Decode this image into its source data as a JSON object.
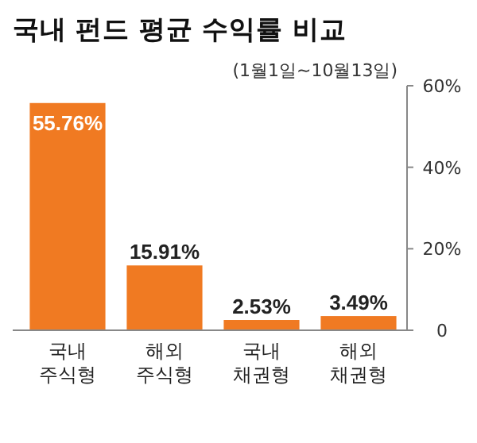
{
  "chart_data": {
    "type": "bar",
    "title": "국내 펀드 평균 수익률 비교",
    "subtitle": "(1월1일~10월13일)",
    "categories": [
      "국내 주식형",
      "해외 주식형",
      "국내 채권형",
      "해외 채권형"
    ],
    "values": [
      55.76,
      15.91,
      2.53,
      3.49
    ],
    "value_labels": [
      "55.76%",
      "15.91%",
      "2.53%",
      "3.49%"
    ],
    "color": "#f07a22",
    "ylim": [
      0,
      60
    ],
    "yticks": [
      {
        "value": 0,
        "label": "0"
      },
      {
        "value": 20,
        "label": "20%"
      },
      {
        "value": 40,
        "label": "40%"
      },
      {
        "value": 60,
        "label": "60%"
      }
    ]
  }
}
